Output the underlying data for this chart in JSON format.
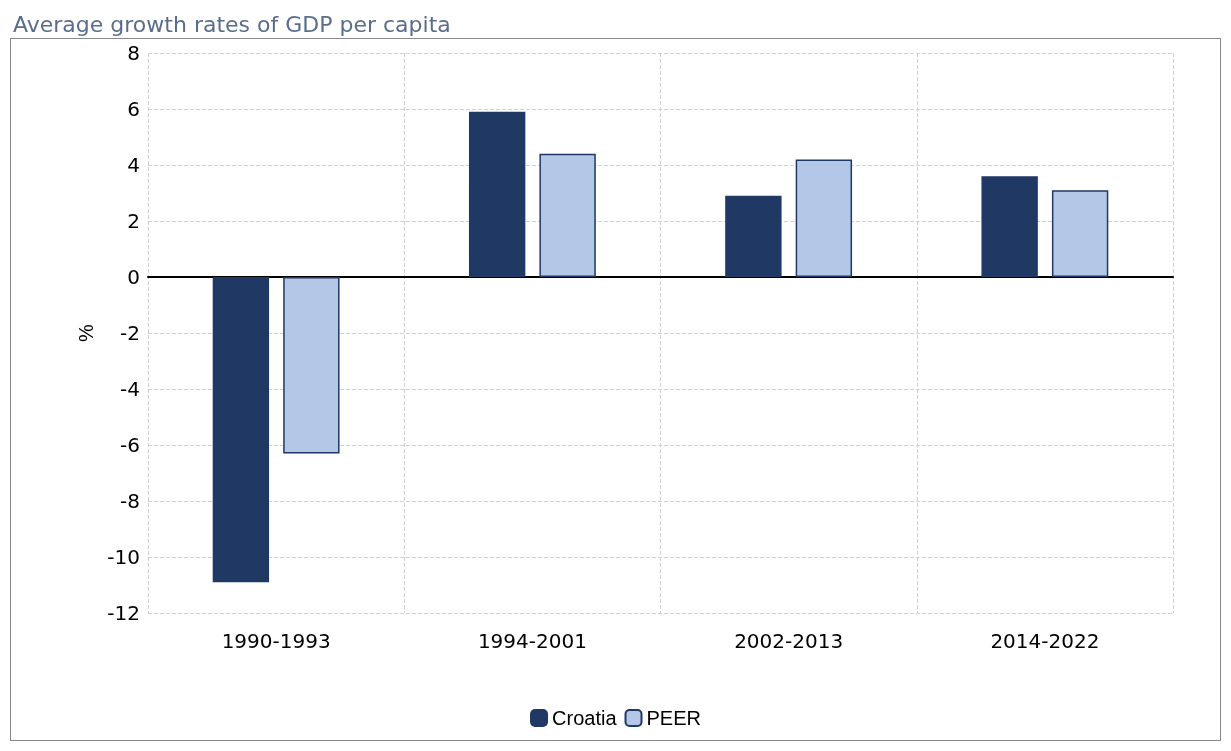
{
  "chart_data": {
    "type": "bar",
    "title": "Average growth rates of GDP per capita",
    "ylabel": "%",
    "categories": [
      "1990-1993",
      "1994-2001",
      "2002-2013",
      "2014-2022"
    ],
    "series": [
      {
        "name": "Croatia",
        "color": "#1f3864",
        "values": [
          -10.9,
          5.9,
          2.9,
          3.6
        ]
      },
      {
        "name": "PEER",
        "color": "#b4c7e7",
        "values": [
          -6.3,
          4.4,
          4.2,
          3.1
        ]
      }
    ],
    "ylim": [
      -12,
      8
    ],
    "yticks": [
      -12,
      -10,
      -8,
      -6,
      -4,
      -2,
      0,
      2,
      4,
      6,
      8
    ],
    "grid": true,
    "legend": "bottom"
  }
}
